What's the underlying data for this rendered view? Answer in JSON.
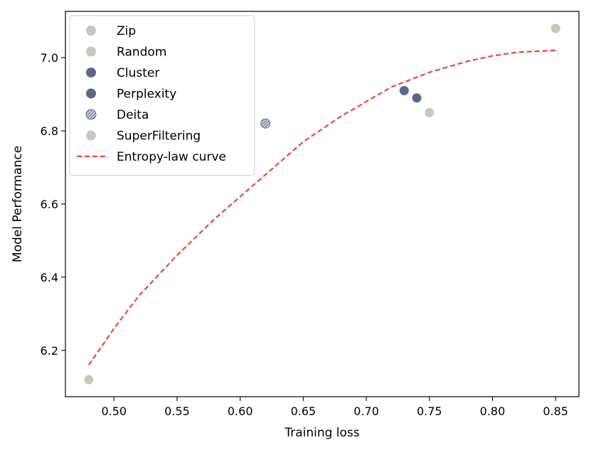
{
  "chart_data": {
    "type": "scatter",
    "title": "",
    "xlabel": "Training loss",
    "ylabel": "Model Performance",
    "xlim": [
      0.4615,
      0.8685
    ],
    "ylim": [
      6.0734,
      7.1266
    ],
    "xticks": [
      0.5,
      0.55,
      0.6,
      0.65,
      0.7,
      0.75,
      0.8,
      0.85
    ],
    "xtick_labels": [
      "0.50",
      "0.55",
      "0.60",
      "0.65",
      "0.70",
      "0.75",
      "0.80",
      "0.85"
    ],
    "yticks": [
      6.2,
      6.4,
      6.6,
      6.8,
      7.0
    ],
    "ytick_labels": [
      "6.2",
      "6.4",
      "6.6",
      "6.8",
      "7.0"
    ],
    "grid": false,
    "legend_position": "top-left",
    "series": [
      {
        "name": "Zip",
        "color": "#c4c8bd",
        "marker": "circle",
        "x": [
          0.48,
          0.85
        ],
        "y": [
          6.12,
          7.08
        ]
      },
      {
        "name": "Random",
        "color": "#c4c8bd",
        "marker": "circle",
        "x": [
          0.75
        ],
        "y": [
          6.85
        ]
      },
      {
        "name": "Cluster",
        "color": "#5c6788",
        "marker": "circle",
        "x": [
          0.73
        ],
        "y": [
          6.91
        ]
      },
      {
        "name": "Perplexity",
        "color": "#5c6788",
        "marker": "circle",
        "x": [
          0.74
        ],
        "y": [
          6.89
        ]
      },
      {
        "name": "Deita",
        "color": "#8e93a6",
        "marker": "circle-hatched",
        "x": [
          0.62
        ],
        "y": [
          6.82
        ]
      },
      {
        "name": "SuperFiltering",
        "color": "#c6c6c6",
        "marker": "circle",
        "x": [],
        "y": []
      }
    ],
    "curve": {
      "name": "Entropy-law curve",
      "color": "#e8483a",
      "style": "dashed",
      "x": [
        0.48,
        0.5,
        0.52,
        0.55,
        0.58,
        0.6,
        0.62,
        0.65,
        0.68,
        0.7,
        0.72,
        0.75,
        0.78,
        0.8,
        0.82,
        0.85
      ],
      "y": [
        6.16,
        6.26,
        6.35,
        6.46,
        6.56,
        6.62,
        6.68,
        6.77,
        6.84,
        6.88,
        6.92,
        6.96,
        6.99,
        7.005,
        7.015,
        7.02
      ]
    }
  }
}
